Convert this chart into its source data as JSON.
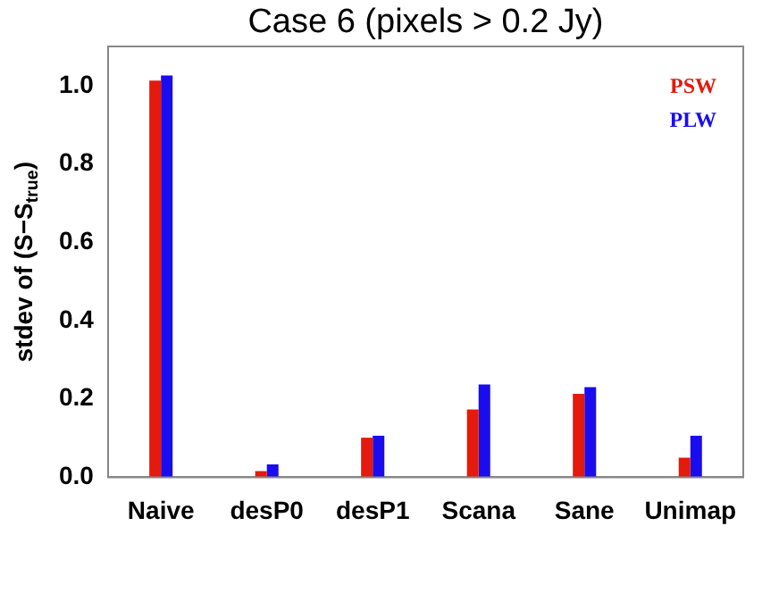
{
  "chart_data": {
    "type": "bar",
    "title": "Case 6 (pixels > 0.2 Jy)",
    "ylabel": "stdev of (S−S$_{true}$)",
    "categories": [
      "Naive",
      "desP0",
      "desP1",
      "Scana",
      "Sane",
      "Unimap"
    ],
    "series": [
      {
        "name": "PSW",
        "color": "#e31a0c",
        "values": [
          1.013,
          0.016,
          0.101,
          0.173,
          0.213,
          0.05
        ]
      },
      {
        "name": "PLW",
        "color": "#1a0cf0",
        "values": [
          1.026,
          0.033,
          0.106,
          0.237,
          0.23,
          0.106
        ]
      }
    ],
    "ylim": [
      0,
      1.1
    ],
    "yticks": [
      {
        "value": 0,
        "label": "0.0"
      },
      0.2,
      0.4,
      0.6,
      0.8,
      {
        "value": 1,
        "label": "1.0"
      }
    ],
    "legend": "top right"
  }
}
